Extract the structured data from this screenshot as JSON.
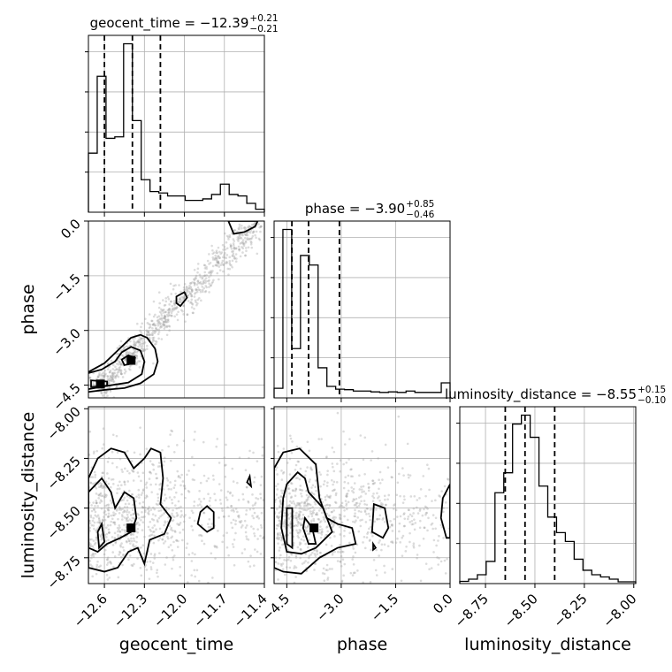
{
  "chart_data": {
    "type": "corner",
    "params": [
      "geocent_time",
      "phase",
      "luminosity_distance"
    ],
    "axis_labels": [
      "geocent_time",
      "phase",
      "luminosity_distance"
    ],
    "ranges": {
      "geocent_time": [
        -12.72,
        -11.4
      ],
      "phase": [
        -4.85,
        0.0
      ],
      "luminosity_distance": [
        -8.88,
        -7.99
      ]
    },
    "ticks": {
      "geocent_time": [
        -12.6,
        -12.3,
        -12.0,
        -11.7,
        -11.4
      ],
      "phase": [
        -4.5,
        -3.0,
        -1.5,
        0.0
      ],
      "luminosity_distance": [
        -8.75,
        -8.5,
        -8.25,
        -8.0
      ]
    },
    "tick_labels": {
      "geocent_time": [
        "−12.6",
        "−12.3",
        "−12.0",
        "−11.7",
        "−11.4"
      ],
      "phase": [
        "−4.5",
        "−3.0",
        "−1.5",
        "0.0"
      ],
      "luminosity_distance": [
        "−8.75",
        "−8.50",
        "−8.25",
        "−8.00"
      ]
    },
    "titles": [
      {
        "param": "geocent_time",
        "text": "geocent_time = −12.39",
        "plus": "+0.21",
        "minus": "−0.21"
      },
      {
        "param": "phase",
        "text": "phase = −3.90",
        "plus": "+0.85",
        "minus": "−0.46"
      },
      {
        "param": "luminosity_distance",
        "text": "luminosity_distance = −8.55",
        "plus": "+0.15",
        "minus": "−0.10"
      }
    ],
    "quantiles": {
      "geocent_time": [
        -12.6,
        -12.39,
        -12.18
      ],
      "phase": [
        -4.36,
        -3.9,
        -3.05
      ],
      "luminosity_distance": [
        -8.65,
        -8.55,
        -8.4
      ]
    },
    "histograms": {
      "geocent_time": {
        "range": [
          -12.72,
          -11.4
        ],
        "counts": [
          2,
          4.6,
          2.5,
          2.55,
          5.7,
          3.1,
          1.1,
          0.7,
          0.65,
          0.55,
          0.55,
          0.4,
          0.4,
          0.45,
          0.6,
          0.95,
          0.6,
          0.55,
          0.3,
          0.1
        ],
        "ymax": 5.7
      },
      "phase": {
        "range": [
          -4.85,
          0.0
        ],
        "counts": [
          0.35,
          6.15,
          1.8,
          5.2,
          4.85,
          1.1,
          0.42,
          0.32,
          0.3,
          0.25,
          0.25,
          0.22,
          0.2,
          0.22,
          0.2,
          0.25,
          0.2,
          0.2,
          0.2,
          0.55
        ],
        "ymax": 6.15
      },
      "luminosity_distance": {
        "range": [
          -8.88,
          -7.99
        ],
        "counts": [
          0.1,
          0.2,
          0.4,
          1.0,
          4.1,
          5.0,
          7.2,
          7.6,
          6.6,
          4.4,
          3.0,
          2.3,
          1.9,
          1.1,
          0.6,
          0.4,
          0.3,
          0.2,
          0.08,
          0.08
        ],
        "ymax": 7.6
      }
    },
    "contours": {
      "phase|geocent_time": {
        "outer": [
          [
            -12.75,
            -4.7
          ],
          [
            -12.6,
            -4.63
          ],
          [
            -12.45,
            -4.58
          ],
          [
            -12.33,
            -4.45
          ],
          [
            -12.23,
            -4.2
          ],
          [
            -12.2,
            -3.85
          ],
          [
            -12.22,
            -3.5
          ],
          [
            -12.28,
            -3.2
          ],
          [
            -12.33,
            -3.12
          ],
          [
            -12.4,
            -3.2
          ],
          [
            -12.5,
            -3.55
          ],
          [
            -12.6,
            -3.9
          ],
          [
            -12.7,
            -4.1
          ],
          [
            -12.75,
            -4.2
          ]
        ],
        "middle": [
          [
            -12.75,
            -4.63
          ],
          [
            -12.6,
            -4.53
          ],
          [
            -12.42,
            -4.43
          ],
          [
            -12.32,
            -4.2
          ],
          [
            -12.3,
            -3.85
          ],
          [
            -12.33,
            -3.55
          ],
          [
            -12.4,
            -3.45
          ],
          [
            -12.47,
            -3.6
          ],
          [
            -12.52,
            -3.85
          ],
          [
            -12.62,
            -4.07
          ],
          [
            -12.75,
            -4.2
          ]
        ],
        "inner": [
          [
            -12.7,
            -4.55
          ],
          [
            -12.58,
            -4.52
          ],
          [
            -12.58,
            -4.4
          ],
          [
            -12.7,
            -4.37
          ]
        ],
        "blob": [
          [
            -12.45,
            -3.95
          ],
          [
            -12.38,
            -3.9
          ],
          [
            -12.37,
            -3.75
          ],
          [
            -12.42,
            -3.68
          ],
          [
            -12.47,
            -3.8
          ]
        ],
        "small": [
          [
            -12.03,
            -2.33
          ],
          [
            -11.98,
            -2.1
          ],
          [
            -12.0,
            -1.95
          ],
          [
            -12.06,
            -2.07
          ],
          [
            -12.06,
            -2.25
          ]
        ],
        "top": [
          [
            -11.67,
            0.0
          ],
          [
            -11.63,
            -0.35
          ],
          [
            -11.55,
            -0.3
          ],
          [
            -11.47,
            -0.15
          ],
          [
            -11.45,
            0.0
          ]
        ]
      },
      "luminosity_distance|geocent_time": {
        "outer": [
          [
            -12.72,
            -8.35
          ],
          [
            -12.65,
            -8.25
          ],
          [
            -12.55,
            -8.2
          ],
          [
            -12.45,
            -8.22
          ],
          [
            -12.38,
            -8.3
          ],
          [
            -12.3,
            -8.25
          ],
          [
            -12.25,
            -8.2
          ],
          [
            -12.18,
            -8.22
          ],
          [
            -12.16,
            -8.35
          ],
          [
            -12.18,
            -8.48
          ],
          [
            -12.1,
            -8.55
          ],
          [
            -12.15,
            -8.63
          ],
          [
            -12.26,
            -8.66
          ],
          [
            -12.3,
            -8.78
          ],
          [
            -12.35,
            -8.7
          ],
          [
            -12.42,
            -8.72
          ],
          [
            -12.5,
            -8.8
          ],
          [
            -12.6,
            -8.82
          ],
          [
            -12.72,
            -8.8
          ]
        ],
        "middle": [
          [
            -12.72,
            -8.42
          ],
          [
            -12.62,
            -8.35
          ],
          [
            -12.55,
            -8.42
          ],
          [
            -12.52,
            -8.5
          ],
          [
            -12.45,
            -8.42
          ],
          [
            -12.38,
            -8.45
          ],
          [
            -12.36,
            -8.55
          ],
          [
            -12.4,
            -8.62
          ],
          [
            -12.48,
            -8.65
          ],
          [
            -12.58,
            -8.68
          ],
          [
            -12.65,
            -8.72
          ],
          [
            -12.72,
            -8.7
          ]
        ],
        "inner": [
          [
            -12.65,
            -8.62
          ],
          [
            -12.62,
            -8.58
          ],
          [
            -12.6,
            -8.67
          ],
          [
            -12.64,
            -8.7
          ]
        ],
        "small": [
          [
            -11.88,
            -8.52
          ],
          [
            -11.83,
            -8.49
          ],
          [
            -11.78,
            -8.52
          ],
          [
            -11.78,
            -8.6
          ],
          [
            -11.83,
            -8.62
          ],
          [
            -11.9,
            -8.58
          ]
        ],
        "tiny": [
          [
            -11.53,
            -8.37
          ],
          [
            -11.51,
            -8.34
          ],
          [
            -11.5,
            -8.39
          ]
        ]
      },
      "luminosity_distance|phase": {
        "outer": [
          [
            -4.85,
            -8.3
          ],
          [
            -4.6,
            -8.22
          ],
          [
            -4.15,
            -8.2
          ],
          [
            -3.7,
            -8.28
          ],
          [
            -3.6,
            -8.45
          ],
          [
            -3.4,
            -8.55
          ],
          [
            -3.1,
            -8.58
          ],
          [
            -2.7,
            -8.6
          ],
          [
            -2.6,
            -8.68
          ],
          [
            -3.1,
            -8.7
          ],
          [
            -3.6,
            -8.75
          ],
          [
            -4.1,
            -8.83
          ],
          [
            -4.6,
            -8.82
          ],
          [
            -4.85,
            -8.8
          ]
        ],
        "middle": [
          [
            -4.5,
            -8.38
          ],
          [
            -4.2,
            -8.32
          ],
          [
            -4.0,
            -8.35
          ],
          [
            -3.9,
            -8.42
          ],
          [
            -3.5,
            -8.5
          ],
          [
            -3.25,
            -8.62
          ],
          [
            -3.7,
            -8.7
          ],
          [
            -4.1,
            -8.73
          ],
          [
            -4.5,
            -8.72
          ],
          [
            -4.65,
            -8.6
          ],
          [
            -4.6,
            -8.45
          ]
        ],
        "inner1": [
          [
            -4.5,
            -8.5
          ],
          [
            -4.35,
            -8.5
          ],
          [
            -4.35,
            -8.7
          ],
          [
            -4.5,
            -8.68
          ]
        ],
        "inner2": [
          [
            -4.0,
            -8.55
          ],
          [
            -3.8,
            -8.6
          ],
          [
            -3.7,
            -8.68
          ],
          [
            -3.9,
            -8.68
          ],
          [
            -4.05,
            -8.6
          ]
        ],
        "right": [
          [
            -2.1,
            -8.48
          ],
          [
            -1.8,
            -8.5
          ],
          [
            -1.7,
            -8.6
          ],
          [
            -1.85,
            -8.65
          ],
          [
            -2.15,
            -8.62
          ]
        ],
        "edge": [
          [
            0.0,
            -8.38
          ],
          [
            -0.2,
            -8.45
          ],
          [
            -0.25,
            -8.55
          ],
          [
            -0.1,
            -8.65
          ],
          [
            0.0,
            -8.65
          ]
        ],
        "dot": [
          [
            -2.12,
            -8.68
          ],
          [
            -2.05,
            -8.7
          ],
          [
            -2.12,
            -8.71
          ]
        ]
      }
    },
    "density_peaks": {
      "phase|geocent_time": [
        [
          -12.63,
          -4.47
        ],
        [
          -12.4,
          -3.82
        ]
      ],
      "luminosity_distance|geocent_time": [
        [
          -12.4,
          -8.6
        ]
      ],
      "luminosity_distance|phase": [
        [
          -3.75,
          -8.6
        ]
      ]
    }
  }
}
